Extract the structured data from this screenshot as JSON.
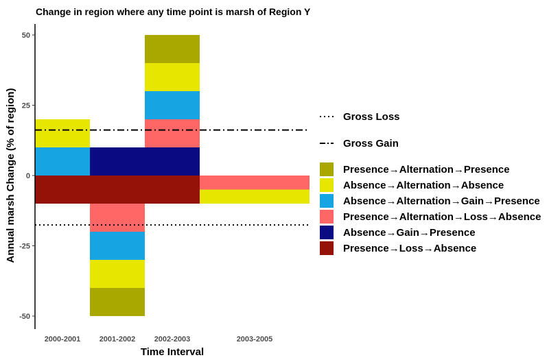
{
  "chart_data": {
    "type": "bar",
    "stacked": true,
    "title": "Change in region where any time point is marsh of Region Y",
    "xlabel": "Time Interval",
    "ylabel": "Annual marsh Change (% of region)",
    "ylim": [
      -55,
      55
    ],
    "yticks": [
      -50,
      -25,
      0,
      25,
      50
    ],
    "grid": false,
    "legend_position": "right",
    "categories": [
      {
        "label": "2000-2001",
        "start": 2000,
        "end": 2001
      },
      {
        "label": "2001-2002",
        "start": 2001,
        "end": 2002
      },
      {
        "label": "2002-2003",
        "start": 2002,
        "end": 2003
      },
      {
        "label": "2003-2005",
        "start": 2003,
        "end": 2005
      }
    ],
    "series": [
      {
        "name": "Presence→Loss→Absence",
        "color": "#951209",
        "values": [
          -10,
          -10,
          -10,
          0
        ]
      },
      {
        "name": "Absence→Gain→Presence",
        "color": "#0a0a82",
        "values": [
          0,
          10,
          10,
          0
        ]
      },
      {
        "name": "Presence→Alternation→Loss→Absence",
        "color": "#ff6666",
        "values": [
          0,
          -10,
          10,
          -5
        ]
      },
      {
        "name": "Absence→Alternation→Gain→Presence",
        "color": "#17a4e3",
        "values": [
          10,
          -10,
          10,
          0
        ]
      },
      {
        "name": "Absence→Alternation→Absence",
        "color": "#e6e600",
        "values": [
          10,
          -10,
          10,
          -5
        ]
      },
      {
        "name": "Presence→Alternation→Presence",
        "color": "#a8a800",
        "values": [
          0,
          -10,
          10,
          0
        ]
      }
    ],
    "reference_lines": [
      {
        "name": "Gross Loss",
        "value": -17.6,
        "style": "dotted"
      },
      {
        "name": "Gross Gain",
        "value": 16.2,
        "style": "dashdot"
      }
    ]
  }
}
